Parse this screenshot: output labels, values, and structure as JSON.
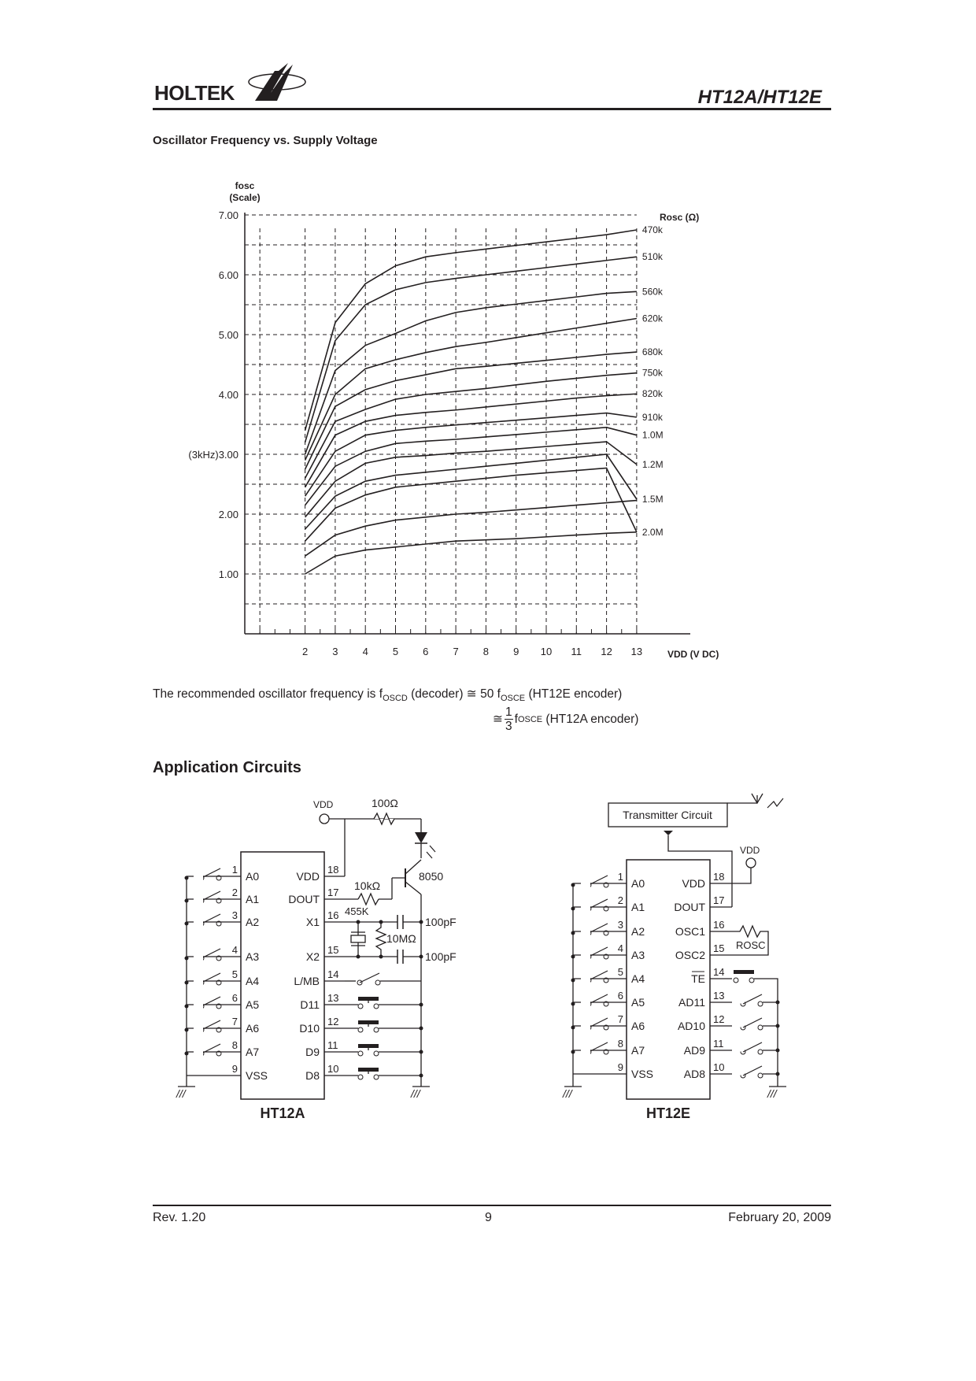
{
  "header": {
    "logo_text": "HOLTEK",
    "doc_title": "HT12A/HT12E"
  },
  "chart_section_title": "Oscillator Frequency vs. Supply Voltage",
  "chart_data": {
    "type": "line",
    "title": "Oscillator Frequency vs. Supply Voltage",
    "ylabel": "fosc (Scale)",
    "xlabel": "VDD (V DC)",
    "legend_title": "Rosc (Ω)",
    "yticks": [
      "7.00",
      "6.00",
      "5.00",
      "4.00",
      "(3kHz)3.00",
      "2.00",
      "1.00"
    ],
    "ytick_values": [
      7,
      6,
      5,
      4,
      3,
      2,
      1
    ],
    "x": [
      2,
      3,
      4,
      5,
      6,
      7,
      8,
      9,
      10,
      11,
      12,
      13
    ],
    "xlim": [
      0,
      13
    ],
    "ylim": [
      0,
      7.2
    ],
    "grid": true,
    "series": [
      {
        "name": "470k",
        "values": [
          3.4,
          5.2,
          5.85,
          6.15,
          6.3,
          6.37,
          6.43,
          6.49,
          6.55,
          6.61,
          6.67,
          6.75
        ]
      },
      {
        "name": "510k",
        "values": [
          3.2,
          4.9,
          5.5,
          5.75,
          5.87,
          5.94,
          6.0,
          6.06,
          6.12,
          6.18,
          6.24,
          6.3
        ]
      },
      {
        "name": "560k",
        "values": [
          3.0,
          4.4,
          4.82,
          5.02,
          5.23,
          5.37,
          5.45,
          5.51,
          5.57,
          5.63,
          5.69,
          5.72
        ]
      },
      {
        "name": "620k",
        "values": [
          2.9,
          4.0,
          4.43,
          4.58,
          4.7,
          4.8,
          4.87,
          4.95,
          5.03,
          5.11,
          5.19,
          5.27
        ]
      },
      {
        "name": "680k",
        "values": [
          2.75,
          3.8,
          4.08,
          4.23,
          4.33,
          4.43,
          4.47,
          4.52,
          4.57,
          4.62,
          4.67,
          4.71
        ]
      },
      {
        "name": "750k",
        "values": [
          2.6,
          3.55,
          3.75,
          3.92,
          4.0,
          4.05,
          4.1,
          4.16,
          4.22,
          4.27,
          4.32,
          4.36
        ]
      },
      {
        "name": "820k",
        "values": [
          2.45,
          3.32,
          3.55,
          3.65,
          3.7,
          3.74,
          3.79,
          3.84,
          3.89,
          3.94,
          3.98,
          4.01
        ]
      },
      {
        "name": "910k",
        "values": [
          2.3,
          3.05,
          3.32,
          3.4,
          3.45,
          3.49,
          3.53,
          3.57,
          3.61,
          3.65,
          3.69,
          3.62
        ]
      },
      {
        "name": "1.0M",
        "values": [
          2.15,
          2.8,
          3.05,
          3.18,
          3.22,
          3.25,
          3.29,
          3.33,
          3.37,
          3.41,
          3.45,
          3.32
        ]
      },
      {
        "name": "1.2M",
        "values": [
          1.95,
          2.55,
          2.85,
          2.95,
          2.98,
          3.02,
          3.05,
          3.09,
          3.13,
          3.17,
          3.21,
          2.83
        ]
      },
      {
        "name": "1.5M",
        "values": [
          1.75,
          2.3,
          2.55,
          2.65,
          2.7,
          2.75,
          2.8,
          2.85,
          2.9,
          2.95,
          3.0,
          2.25
        ]
      },
      {
        "name": "2.0M",
        "values": [
          1.55,
          2.1,
          2.32,
          2.45,
          2.5,
          2.55,
          2.6,
          2.65,
          2.69,
          2.73,
          2.77,
          1.7
        ]
      },
      {
        "name": "",
        "values": [
          1.3,
          1.65,
          1.8,
          1.9,
          1.95,
          2.0,
          2.03,
          2.07,
          2.11,
          2.15,
          2.19,
          2.23
        ]
      },
      {
        "name": "",
        "values": [
          1.0,
          1.3,
          1.4,
          1.45,
          1.5,
          1.55,
          1.57,
          1.59,
          1.62,
          1.65,
          1.68,
          1.7
        ]
      }
    ]
  },
  "freq_note": {
    "line1_prefix": "The recommended oscillator frequency is f",
    "sub1": "OSCD",
    "line1_mid": " (decoder) ≅ 50 f",
    "sub2": "OSCE",
    "line1_suffix": " (HT12E encoder)",
    "line2_prefix": "≅ ",
    "frac_num": "1",
    "frac_den": "3",
    "line2_mid": " f",
    "sub3": "OSCE",
    "line2_suffix": " (HT12A encoder)"
  },
  "app_section_title": "Application Circuits",
  "ht12a": {
    "chip_name": "HT12A",
    "left_pins": [
      {
        "num": "1",
        "name": "A0"
      },
      {
        "num": "2",
        "name": "A1"
      },
      {
        "num": "3",
        "name": "A2"
      },
      {
        "num": "4",
        "name": "A3"
      },
      {
        "num": "5",
        "name": "A4"
      },
      {
        "num": "6",
        "name": "A5"
      },
      {
        "num": "7",
        "name": "A6"
      },
      {
        "num": "8",
        "name": "A7"
      },
      {
        "num": "9",
        "name": "VSS"
      }
    ],
    "right_pins": [
      {
        "num": "18",
        "name": "VDD"
      },
      {
        "num": "17",
        "name": "DOUT"
      },
      {
        "num": "16",
        "name": "X1"
      },
      {
        "num": "15",
        "name": "X2"
      },
      {
        "num": "14",
        "name": "L/MB"
      },
      {
        "num": "13",
        "name": "D11"
      },
      {
        "num": "12",
        "name": "D10"
      },
      {
        "num": "11",
        "name": "D9"
      },
      {
        "num": "10",
        "name": "D8"
      }
    ],
    "vdd_label": "VDD",
    "r100": "100Ω",
    "r10k": "10kΩ",
    "transistor": "8050",
    "xtal": "455K",
    "r10m": "10MΩ",
    "c1": "100pF",
    "c2": "100pF"
  },
  "ht12e": {
    "chip_name": "HT12E",
    "tx_label": "Transmitter Circuit",
    "vdd_label": "VDD",
    "rosc_label": "ROSC",
    "left_pins": [
      {
        "num": "1",
        "name": "A0"
      },
      {
        "num": "2",
        "name": "A1"
      },
      {
        "num": "3",
        "name": "A2"
      },
      {
        "num": "4",
        "name": "A3"
      },
      {
        "num": "5",
        "name": "A4"
      },
      {
        "num": "6",
        "name": "A5"
      },
      {
        "num": "7",
        "name": "A6"
      },
      {
        "num": "8",
        "name": "A7"
      },
      {
        "num": "9",
        "name": "VSS"
      }
    ],
    "right_pins": [
      {
        "num": "18",
        "name": "VDD"
      },
      {
        "num": "17",
        "name": "DOUT"
      },
      {
        "num": "16",
        "name": "OSC1"
      },
      {
        "num": "15",
        "name": "OSC2"
      },
      {
        "num": "14",
        "name": "TE"
      },
      {
        "num": "13",
        "name": "AD11"
      },
      {
        "num": "12",
        "name": "AD10"
      },
      {
        "num": "11",
        "name": "AD9"
      },
      {
        "num": "10",
        "name": "AD8"
      }
    ]
  },
  "footer": {
    "rev": "Rev. 1.20",
    "page": "9",
    "date": "February 20, 2009"
  }
}
